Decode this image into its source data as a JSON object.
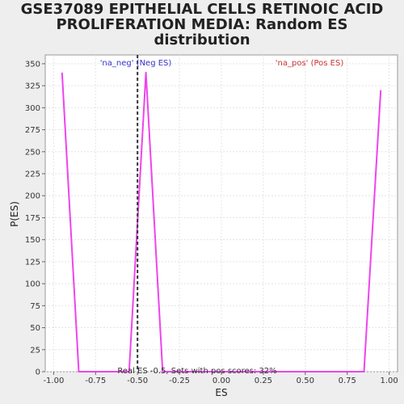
{
  "chart_data": {
    "type": "line",
    "title_lines": [
      "GSE37089 EPITHELIAL CELLS RETINOIC ACID",
      "PROLIFERATION MEDIA: Random ES",
      "distribution"
    ],
    "xlabel": "ES",
    "ylabel": "P(ES)",
    "xlim": [
      -1.05,
      1.05
    ],
    "ylim": [
      0,
      360
    ],
    "x_ticks": [
      -1.0,
      -0.75,
      -0.5,
      -0.25,
      0.0,
      0.25,
      0.5,
      0.75,
      1.0
    ],
    "x_tick_labels": [
      "-1.00",
      "-0.75",
      "-0.50",
      "-0.25",
      "0.00",
      "0.25",
      "0.50",
      "0.75",
      "1.00"
    ],
    "y_ticks": [
      0,
      25,
      50,
      75,
      100,
      125,
      150,
      175,
      200,
      225,
      250,
      275,
      300,
      325,
      350
    ],
    "grid": true,
    "series": [
      {
        "color": "#ee44ee",
        "x": [
          -0.95,
          -0.85,
          -0.55,
          -0.45,
          -0.35,
          0.85,
          0.95
        ],
        "y": [
          340,
          0,
          0,
          340,
          0,
          0,
          320
        ]
      }
    ],
    "real_es": -0.5,
    "real_es_line_color": "#333333",
    "annotations": {
      "neg_label": "'na_neg' (Neg ES)",
      "neg_color": "#3333cc",
      "pos_label": "'na_pos' (Pos ES)",
      "pos_color": "#cc3333"
    },
    "footer": "Real ES -0.5, Sets with pos scores: 32%"
  }
}
